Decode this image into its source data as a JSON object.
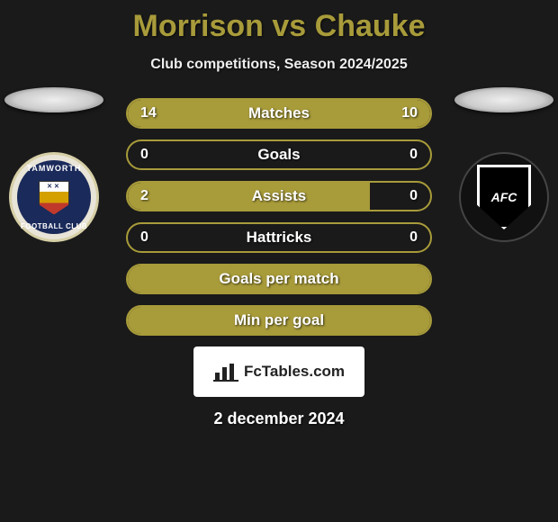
{
  "title": "Morrison vs Chauke",
  "subtitle": "Club competitions, Season 2024/2025",
  "colors": {
    "accent": "#a89b3a",
    "background": "#1a1a1a"
  },
  "left_club": {
    "name": "Tamworth Football Club",
    "top_text": "TAMWORTH",
    "bottom_text": "FOOTBALL CLUB"
  },
  "right_club": {
    "shield_text": "AFC"
  },
  "bars": [
    {
      "label": "Matches",
      "left": "14",
      "right": "10",
      "left_pct": 58,
      "right_pct": 42,
      "show_values": true
    },
    {
      "label": "Goals",
      "left": "0",
      "right": "0",
      "left_pct": 0,
      "right_pct": 0,
      "show_values": true
    },
    {
      "label": "Assists",
      "left": "2",
      "right": "0",
      "left_pct": 80,
      "right_pct": 0,
      "show_values": true
    },
    {
      "label": "Hattricks",
      "left": "0",
      "right": "0",
      "left_pct": 0,
      "right_pct": 0,
      "show_values": true
    },
    {
      "label": "Goals per match",
      "left": "",
      "right": "",
      "left_pct": 100,
      "right_pct": 0,
      "show_values": false,
      "full": true
    },
    {
      "label": "Min per goal",
      "left": "",
      "right": "",
      "left_pct": 100,
      "right_pct": 0,
      "show_values": false,
      "full": true
    }
  ],
  "footer_brand": "FcTables.com",
  "date": "2 december 2024"
}
